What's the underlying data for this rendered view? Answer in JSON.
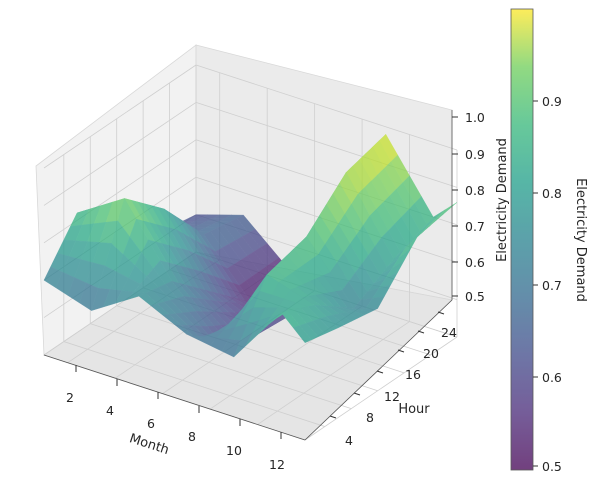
{
  "chart_data": {
    "type": "surface",
    "xlabel": "Month",
    "ylabel": "Hour",
    "zlabel": "Electricity Demand",
    "xlim": [
      1,
      12
    ],
    "ylim": [
      1,
      24
    ],
    "zlim": [
      0.5,
      1.0
    ],
    "x_ticks": [
      2,
      4,
      6,
      8,
      10,
      12
    ],
    "y_ticks": [
      4,
      8,
      12,
      16,
      20,
      24
    ],
    "z_ticks": [
      0.5,
      0.6,
      0.7,
      0.8,
      0.9,
      1.0
    ],
    "x_tick_labels": [
      "2",
      "4",
      "6",
      "8",
      "10",
      "12"
    ],
    "y_tick_labels": [
      "4",
      "8",
      "12",
      "16",
      "20",
      "24"
    ],
    "z_tick_labels": [
      "0.5",
      "0.6",
      "0.7",
      "0.8",
      "0.9",
      "1.0"
    ],
    "colormap": "viridis",
    "surface_alpha": 0.7,
    "colorbar": {
      "label": "Electricity Demand",
      "range": [
        0.5,
        1.0
      ],
      "ticks": [
        0.5,
        0.6,
        0.7,
        0.8,
        0.9
      ],
      "tick_labels": [
        "0.5",
        "0.6",
        "0.7",
        "0.8",
        "0.9"
      ]
    },
    "grid": true,
    "grid_samples": {
      "months": [
        1,
        3,
        5,
        7,
        9,
        11,
        12
      ],
      "hours": [
        1,
        6,
        12,
        18,
        24
      ]
    },
    "surface_samples": [
      [
        0.7,
        0.66,
        0.74,
        0.68,
        0.66,
        0.82,
        0.76
      ],
      [
        0.82,
        0.9,
        0.72,
        0.6,
        0.82,
        0.78,
        0.74
      ],
      [
        0.74,
        0.8,
        0.62,
        0.55,
        0.85,
        0.7,
        0.72
      ],
      [
        0.62,
        0.66,
        0.52,
        0.54,
        0.95,
        0.76,
        0.84
      ],
      [
        0.6,
        0.64,
        0.53,
        0.52,
        0.98,
        0.8,
        0.86
      ]
    ]
  }
}
